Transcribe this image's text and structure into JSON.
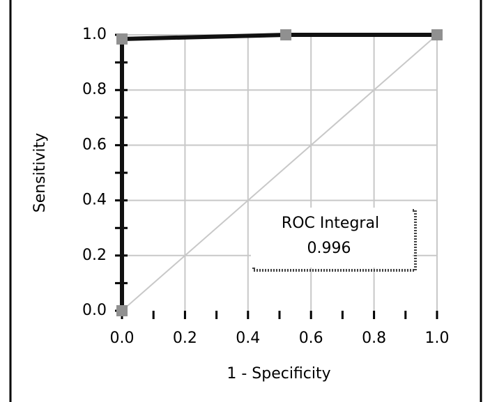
{
  "chart_data": {
    "type": "line",
    "xlabel": "1 - Specificity",
    "ylabel": "Sensitivity",
    "x": [
      0,
      0,
      0.52,
      1.0
    ],
    "series": [
      {
        "color": "#111111",
        "marker_color": "#909090",
        "values": [
          0,
          0.985,
          1.0,
          1.0
        ]
      }
    ],
    "xlim": [
      0,
      1
    ],
    "ylim": [
      0,
      1
    ],
    "xticks": [
      {
        "value": 0,
        "label": "0.0"
      },
      0.2,
      0.4,
      0.6,
      0.8,
      {
        "value": 1,
        "label": "1.0"
      }
    ],
    "yticks": [
      {
        "value": 0,
        "label": "0.0"
      },
      0.2,
      0.4,
      0.6,
      0.8,
      {
        "value": 1,
        "label": "1.0"
      }
    ],
    "minor_ticks": [
      0.1,
      0.3,
      0.5,
      0.7,
      0.9
    ],
    "grid": true,
    "diagonal": true,
    "annotation": {
      "label": "ROC Integral",
      "value": 0.996
    }
  }
}
